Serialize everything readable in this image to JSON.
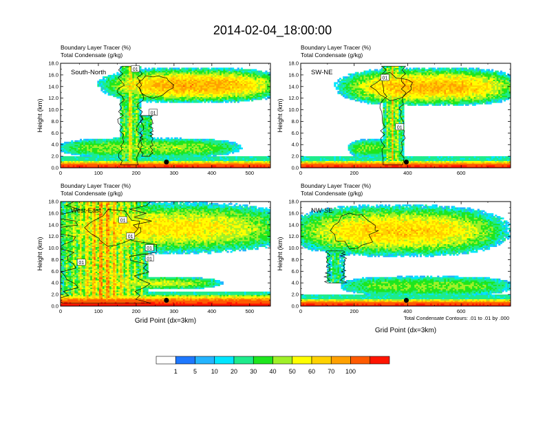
{
  "title": "2014-02-04_18:00:00",
  "footnote": "Total Condensate Contours: .01 to .01 by .000",
  "colorbar": {
    "colors": [
      "#ffffff",
      "#1e78ff",
      "#24b4ff",
      "#00e6ff",
      "#1eeb8c",
      "#1ee61e",
      "#a0f028",
      "#ffff00",
      "#ffd200",
      "#ffa000",
      "#ff5a00",
      "#ff1400"
    ],
    "labels": [
      "1",
      "5",
      "10",
      "20",
      "30",
      "40",
      "50",
      "60",
      "70",
      "100"
    ]
  },
  "chart_data": [
    {
      "type": "heatmap",
      "panel_label": "South-North",
      "left_string": "Boundary Layer Tracer   (%)",
      "left_string2": "Total Condensate   (g/kg)",
      "ylabel": "Height (km)",
      "xlabel": "",
      "xlim": [
        0,
        555
      ],
      "ylim": [
        0,
        18
      ],
      "xticks": [
        0,
        100,
        200,
        300,
        400,
        500
      ],
      "xtick_labels": [
        "0",
        "100",
        "200",
        "300",
        "400",
        "500"
      ],
      "yticks": [
        0,
        2,
        4,
        6,
        8,
        10,
        12,
        14,
        16,
        18
      ],
      "ytick_labels": [
        "0.0",
        "2.0",
        "4.0",
        "6.0",
        "8.0",
        "10.0",
        "12.0",
        "14.0",
        "16.0",
        "18.0"
      ],
      "marker": {
        "x": 280,
        "y": 1.0
      },
      "contour_labels": [
        {
          "x": 198,
          "y": 17.0,
          "text": "01"
        },
        {
          "x": 245,
          "y": 9.5,
          "text": "01"
        }
      ],
      "features": {
        "anvil": [
          {
            "x": [
              150,
              555
            ],
            "y": [
              11.5,
              17.0
            ],
            "peak": 62
          }
        ],
        "towers": [
          {
            "x": [
              160,
              210
            ],
            "y": [
              0.5,
              17.5
            ],
            "peak": 55
          },
          {
            "x": [
              215,
              240
            ],
            "y": [
              2,
              9
            ],
            "peak": 40
          }
        ],
        "low_clouds": [
          {
            "x": [
              0,
              470
            ],
            "y": [
              2.0,
              5.0
            ],
            "peak": 35
          }
        ],
        "boundary_layer": {
          "top": 1.3,
          "peak": 100
        }
      }
    },
    {
      "type": "heatmap",
      "panel_label": "SW-NE",
      "left_string": "Boundary Layer Tracer   (%)",
      "left_string2": "Total Condensate   (g/kg)",
      "ylabel": "Height (km)",
      "xlabel": "",
      "xlim": [
        0,
        785
      ],
      "ylim": [
        0,
        18
      ],
      "xticks": [
        0,
        200,
        400,
        600
      ],
      "xtick_labels": [
        "0",
        "200",
        "400",
        "600"
      ],
      "yticks": [
        0,
        2,
        4,
        6,
        8,
        10,
        12,
        14,
        16,
        18
      ],
      "ytick_labels": [
        "0.0",
        "2.0",
        "4.0",
        "6.0",
        "8.0",
        "10.0",
        "12.0",
        "14.0",
        "16.0",
        "18.0"
      ],
      "marker": {
        "x": 395,
        "y": 1.0
      },
      "contour_labels": [
        {
          "x": 315,
          "y": 15.5,
          "text": "01"
        },
        {
          "x": 370,
          "y": 7.0,
          "text": "01"
        }
      ],
      "features": {
        "anvil": [
          {
            "x": [
              200,
              770
            ],
            "y": [
              11.0,
              17.0
            ],
            "peak": 60
          }
        ],
        "towers": [
          {
            "x": [
              310,
              380
            ],
            "y": [
              0.5,
              17.5
            ],
            "peak": 58
          }
        ],
        "low_clouds": [
          {
            "x": [
              180,
              350
            ],
            "y": [
              2.0,
              4.8
            ],
            "peak": 30
          }
        ],
        "boundary_layer": {
          "top": 1.3,
          "peak": 100
        }
      }
    },
    {
      "type": "heatmap",
      "panel_label": "West-East",
      "left_string": "Boundary Layer Tracer   (%)",
      "left_string2": "Total Condensate   (g/kg)",
      "ylabel": "Height (km)",
      "xlabel": "Grid Point (dx=3km)",
      "xlim": [
        0,
        555
      ],
      "ylim": [
        0,
        18
      ],
      "xticks": [
        0,
        100,
        200,
        300,
        400,
        500
      ],
      "xtick_labels": [
        "0",
        "100",
        "200",
        "300",
        "400",
        "500"
      ],
      "yticks": [
        0,
        2,
        4,
        6,
        8,
        10,
        12,
        14,
        16,
        18
      ],
      "ytick_labels": [
        "0.0",
        "2.0",
        "4.0",
        "6.0",
        "8.0",
        "10.0",
        "12.0",
        "14.0",
        "16.0",
        "18.0"
      ],
      "marker": {
        "x": 280,
        "y": 1.0
      },
      "contour_labels": [
        {
          "x": 165,
          "y": 14.8,
          "text": "01"
        },
        {
          "x": 185,
          "y": 12.0,
          "text": "01"
        },
        {
          "x": 235,
          "y": 10.0,
          "text": "01"
        },
        {
          "x": 235,
          "y": 8.2,
          "text": "01"
        },
        {
          "x": 55,
          "y": 7.5,
          "text": "01"
        }
      ],
      "features": {
        "anvil": [
          {
            "x": [
              0,
              555
            ],
            "y": [
              9.5,
              17.5
            ],
            "peak": 50
          }
        ],
        "towers": [
          {
            "x": [
              10,
              220
            ],
            "y": [
              0.5,
              18.0
            ],
            "peak": 75
          }
        ],
        "low_clouds": [
          {
            "x": [
              0,
              420
            ],
            "y": [
              3.0,
              5.0
            ],
            "peak": 40
          }
        ],
        "boundary_layer": {
          "top": 2.0,
          "peak": 100
        }
      }
    },
    {
      "type": "heatmap",
      "panel_label": "NW-SE",
      "left_string": "Boundary Layer Tracer   (%)",
      "left_string2": "Total Condensate   (g/kg)",
      "ylabel": "Height (km)",
      "xlabel": "Grid Point (dx=3km)",
      "xlim": [
        0,
        785
      ],
      "ylim": [
        0,
        18
      ],
      "xticks": [
        0,
        200,
        400,
        600
      ],
      "xtick_labels": [
        "0",
        "200",
        "400",
        "600"
      ],
      "yticks": [
        0,
        2,
        4,
        6,
        8,
        10,
        12,
        14,
        16,
        18
      ],
      "ytick_labels": [
        "0.0",
        "2.0",
        "4.0",
        "6.0",
        "8.0",
        "10.0",
        "12.0",
        "14.0",
        "16.0",
        "18.0"
      ],
      "marker": {
        "x": 395,
        "y": 1.0
      },
      "contour_labels": [],
      "features": {
        "anvil": [
          {
            "x": [
              30,
              700
            ],
            "y": [
              9.0,
              17.0
            ],
            "peak": 55
          }
        ],
        "towers": [
          {
            "x": [
              100,
              160
            ],
            "y": [
              4.0,
              9.5
            ],
            "peak": 30
          }
        ],
        "low_clouds": [
          {
            "x": [
              160,
              785
            ],
            "y": [
              2.0,
              5.0
            ],
            "peak": 32
          }
        ],
        "boundary_layer": {
          "top": 1.3,
          "peak": 100
        }
      }
    }
  ]
}
